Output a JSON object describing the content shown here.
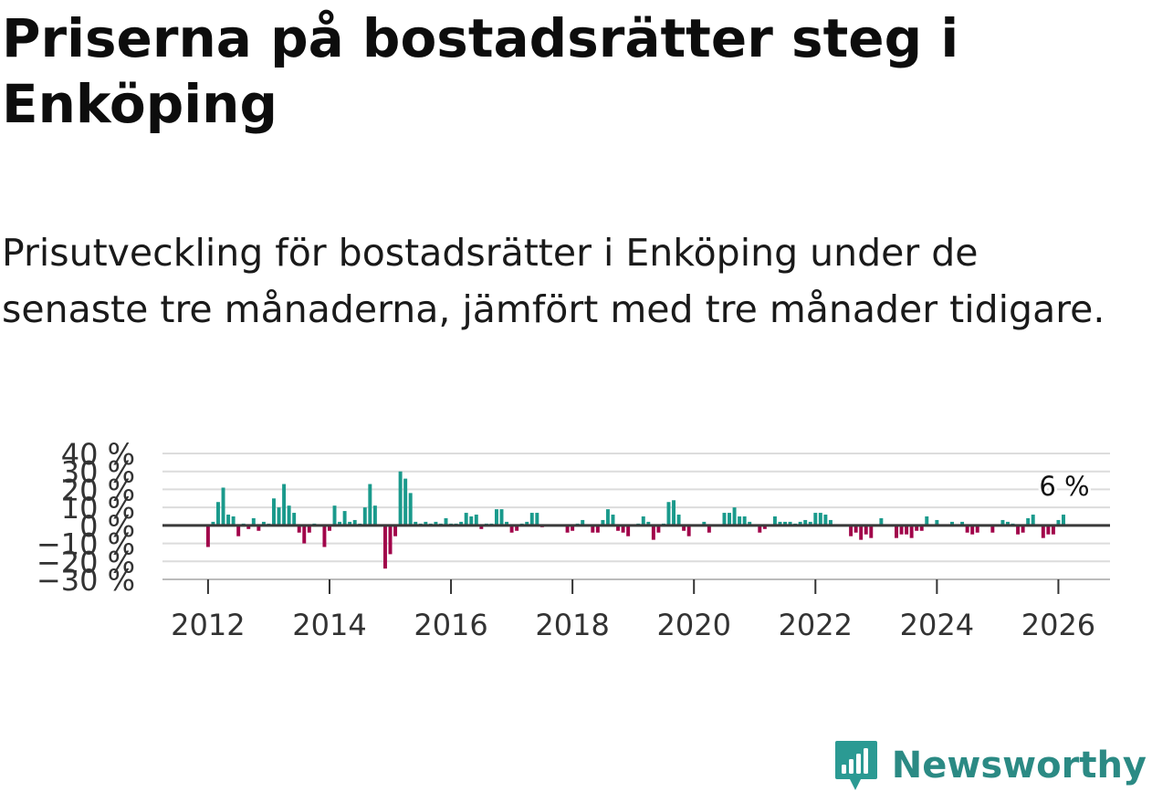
{
  "title": "Priserna på bostadsrätter steg i Enköping",
  "subtitle": "Prisutveckling för bostadsrätter i Enköping under de senaste tre månaderna, jämfört med tre månader tidigare.",
  "brand": {
    "name": "Newsworthy",
    "color": "#2b9a93"
  },
  "chart_data": {
    "type": "bar",
    "ylim": [
      -30,
      40
    ],
    "yticks": [
      -30,
      -20,
      -10,
      0,
      10,
      20,
      30,
      40
    ],
    "ytick_labels": [
      "−30 %",
      "−20 %",
      "−10 %",
      "0 %",
      "10 %",
      "20 %",
      "30 %",
      "40 %"
    ],
    "xlim": [
      2011.25,
      2026.85
    ],
    "xticks": [
      2012,
      2014,
      2016,
      2018,
      2020,
      2022,
      2024,
      2026
    ],
    "xtick_labels": [
      "2012",
      "2014",
      "2016",
      "2018",
      "2020",
      "2022",
      "2024",
      "2026"
    ],
    "positive_color": "#1a9a8c",
    "negative_color": "#a1044a",
    "last_label": "6 %",
    "series": [
      {
        "name": "Prisutveckling",
        "start": "2012-01",
        "interval": "month",
        "values": [
          -12,
          2,
          13,
          21,
          6,
          5,
          -6,
          1,
          -2,
          4,
          -3,
          2,
          1,
          15,
          10,
          23,
          11,
          7,
          -4,
          -10,
          -4,
          1,
          0,
          -12,
          -3,
          11,
          2,
          8,
          2,
          3,
          1,
          10,
          23,
          11,
          0,
          -24,
          -16,
          -6,
          30,
          26,
          18,
          2,
          1,
          2,
          1,
          2,
          1,
          4,
          1,
          1,
          2,
          7,
          5,
          6,
          -2,
          1,
          1,
          9,
          9,
          2,
          -4,
          -3,
          1,
          2,
          7,
          7,
          -1,
          0,
          0,
          0,
          0,
          -4,
          -3,
          1,
          3,
          0,
          -4,
          -4,
          3,
          9,
          6,
          -3,
          -4,
          -6,
          0,
          1,
          5,
          2,
          -8,
          -4,
          1,
          13,
          14,
          6,
          -3,
          -6,
          0,
          0,
          2,
          -4,
          0,
          0,
          7,
          7,
          10,
          5,
          5,
          2,
          0,
          -4,
          -2,
          0,
          5,
          2,
          2,
          2,
          1,
          2,
          3,
          2,
          7,
          7,
          6,
          3,
          0,
          0,
          0,
          -6,
          -4,
          -8,
          -5,
          -7,
          0,
          4,
          0,
          0,
          -7,
          -5,
          -5,
          -7,
          -3,
          -3,
          5,
          0,
          3,
          0,
          0,
          2,
          0,
          2,
          -4,
          -5,
          -4,
          0,
          0,
          -4,
          0,
          3,
          2,
          1,
          -5,
          -4,
          4,
          6,
          0,
          -7,
          -5,
          -5,
          3,
          6
        ]
      }
    ]
  }
}
